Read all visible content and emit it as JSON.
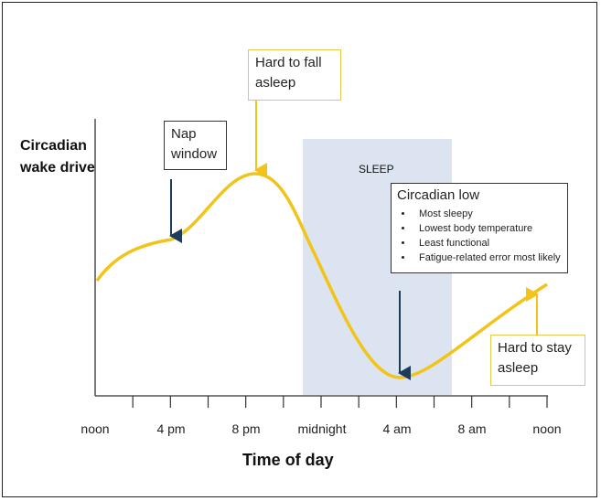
{
  "y_axis_label": [
    "Circadian",
    "wake drive"
  ],
  "x_axis_label": "Time of day",
  "x_ticks": [
    "noon",
    "4 pm",
    "8 pm",
    "midnight",
    "4 am",
    "8 am",
    "noon"
  ],
  "sleep_label": "SLEEP",
  "annotations": {
    "nap": [
      "Nap",
      "window"
    ],
    "hard_fall": [
      "Hard to fall",
      "asleep"
    ],
    "hard_stay": [
      "Hard to stay",
      "asleep"
    ],
    "circadian_low": {
      "title": "Circadian low",
      "items": [
        "Most sleepy",
        "Lowest body temperature",
        "Least functional",
        "Fatigue-related error most likely"
      ]
    }
  },
  "colors": {
    "curve": "#f2c318",
    "sleep_band": "#dbe4f0",
    "arrow_dark": "#1f3b5a",
    "arrow_yellow": "#f2c318"
  }
}
